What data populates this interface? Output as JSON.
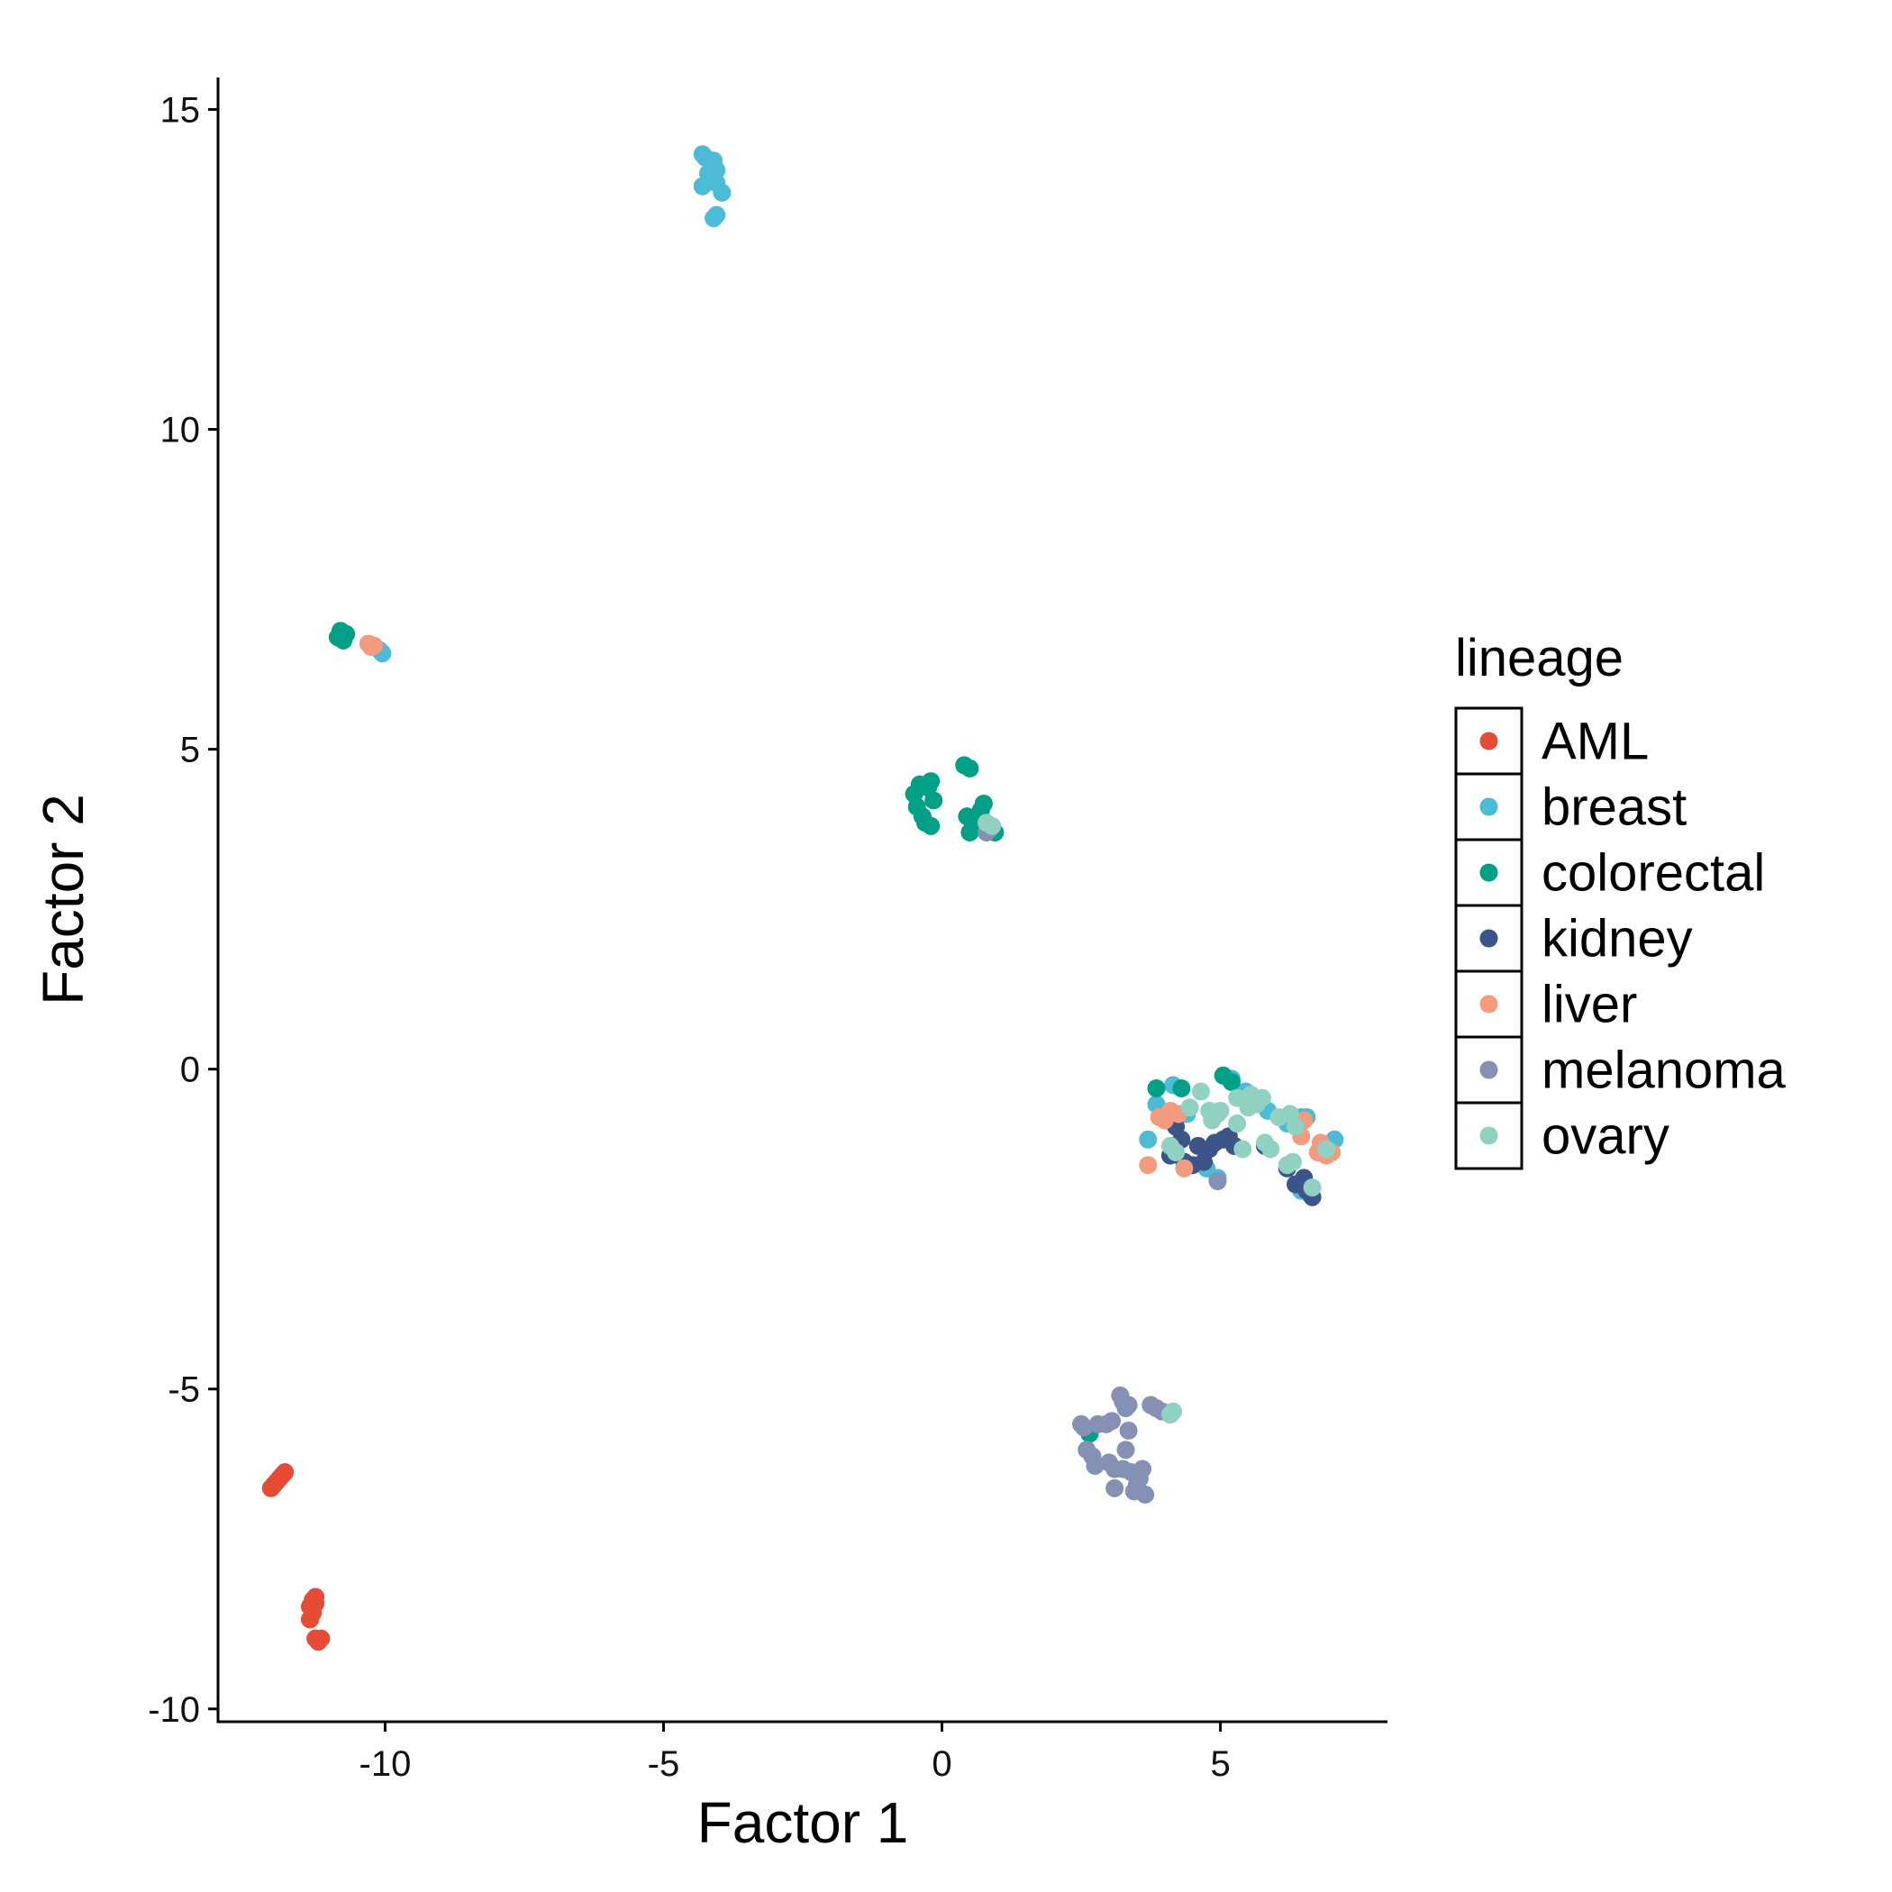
{
  "chart_data": {
    "type": "scatter",
    "title": "",
    "xlabel": "Factor 1",
    "ylabel": "Factor 2",
    "xlim": [
      -13,
      8
    ],
    "ylim": [
      -10.2,
      15.5
    ],
    "x_ticks": [
      -10,
      -5,
      0,
      5
    ],
    "x_tick_labels": [
      "-10",
      "-5",
      "0",
      "5"
    ],
    "y_ticks": [
      -10,
      -5,
      0,
      5,
      10,
      15
    ],
    "y_tick_labels": [
      "-10",
      "-5",
      "0",
      "5",
      "10",
      "15"
    ],
    "grid": false,
    "legend": {
      "title": "lineage",
      "position": "right"
    },
    "series": [
      {
        "name": "AML",
        "color": "#E64B35",
        "points": [
          [
            -12.0,
            -6.5
          ],
          [
            -11.95,
            -6.45
          ],
          [
            -11.9,
            -6.4
          ],
          [
            -11.85,
            -6.35
          ],
          [
            -11.8,
            -6.3
          ],
          [
            -12.05,
            -6.55
          ],
          [
            -11.3,
            -8.3
          ],
          [
            -11.25,
            -8.25
          ],
          [
            -11.35,
            -8.4
          ],
          [
            -11.3,
            -8.5
          ],
          [
            -11.35,
            -8.6
          ],
          [
            -11.25,
            -8.35
          ],
          [
            -11.25,
            -8.9
          ],
          [
            -11.2,
            -8.95
          ],
          [
            -11.15,
            -8.9
          ]
        ]
      },
      {
        "name": "breast",
        "color": "#4DBBD5",
        "points": [
          [
            -4.3,
            14.3
          ],
          [
            -4.25,
            14.25
          ],
          [
            -4.1,
            14.2
          ],
          [
            -4.05,
            14.05
          ],
          [
            -4.2,
            14.0
          ],
          [
            -4.15,
            13.9
          ],
          [
            -4.3,
            13.8
          ],
          [
            -4.05,
            13.85
          ],
          [
            -3.95,
            13.7
          ],
          [
            -4.1,
            13.3
          ],
          [
            -4.05,
            13.35
          ],
          [
            -10.1,
            6.55
          ],
          [
            -10.05,
            6.5
          ],
          [
            3.7,
            -1.1
          ],
          [
            3.85,
            -0.55
          ],
          [
            4.15,
            -0.25
          ],
          [
            4.4,
            -0.7
          ],
          [
            4.75,
            -1.55
          ],
          [
            4.95,
            -1.7
          ],
          [
            5.2,
            -0.15
          ],
          [
            5.45,
            -0.35
          ],
          [
            5.85,
            -0.65
          ],
          [
            6.2,
            -0.85
          ],
          [
            6.45,
            -0.75
          ],
          [
            6.55,
            -0.75
          ],
          [
            6.45,
            -1.9
          ],
          [
            6.6,
            -1.95
          ],
          [
            7.05,
            -1.1
          ],
          [
            6.85,
            -1.2
          ]
        ]
      },
      {
        "name": "colorectal",
        "color": "#00A087",
        "points": [
          [
            -10.85,
            6.75
          ],
          [
            -10.8,
            6.85
          ],
          [
            -10.7,
            6.8
          ],
          [
            -10.75,
            6.7
          ],
          [
            -0.5,
            4.3
          ],
          [
            -0.45,
            4.1
          ],
          [
            -0.4,
            4.45
          ],
          [
            -0.35,
            3.95
          ],
          [
            -0.3,
            3.85
          ],
          [
            -0.2,
            3.8
          ],
          [
            -0.25,
            4.4
          ],
          [
            -0.2,
            4.5
          ],
          [
            -0.15,
            4.2
          ],
          [
            0.4,
            4.75
          ],
          [
            0.5,
            4.7
          ],
          [
            0.45,
            3.95
          ],
          [
            0.55,
            3.85
          ],
          [
            0.5,
            3.7
          ],
          [
            0.7,
            4.05
          ],
          [
            0.75,
            4.15
          ],
          [
            0.95,
            3.7
          ],
          [
            3.85,
            -0.3
          ],
          [
            4.3,
            -0.3
          ],
          [
            5.05,
            -0.1
          ],
          [
            5.2,
            -0.2
          ],
          [
            2.65,
            -5.7
          ]
        ]
      },
      {
        "name": "kidney",
        "color": "#3C5488",
        "points": [
          [
            4.2,
            -0.9
          ],
          [
            4.3,
            -1.1
          ],
          [
            4.1,
            -1.35
          ],
          [
            4.35,
            -1.45
          ],
          [
            4.5,
            -1.5
          ],
          [
            4.6,
            -1.2
          ],
          [
            4.8,
            -1.25
          ],
          [
            4.9,
            -1.15
          ],
          [
            5.05,
            -1.1
          ],
          [
            5.15,
            -1.05
          ],
          [
            5.25,
            -1.2
          ],
          [
            4.7,
            -1.45
          ],
          [
            5.8,
            -1.2
          ],
          [
            6.2,
            -1.55
          ],
          [
            6.35,
            -1.8
          ],
          [
            6.5,
            -1.7
          ],
          [
            6.65,
            -2.0
          ],
          [
            6.55,
            -1.9
          ]
        ]
      },
      {
        "name": "liver",
        "color": "#F39B7F",
        "points": [
          [
            -10.3,
            6.65
          ],
          [
            -10.25,
            6.6
          ],
          [
            -10.2,
            6.62
          ],
          [
            3.7,
            -1.5
          ],
          [
            3.9,
            -0.75
          ],
          [
            4.0,
            -0.8
          ],
          [
            4.1,
            -0.65
          ],
          [
            4.25,
            -0.7
          ],
          [
            4.35,
            -1.55
          ],
          [
            6.45,
            -1.05
          ],
          [
            6.5,
            -0.8
          ],
          [
            6.75,
            -1.3
          ],
          [
            6.85,
            -1.25
          ],
          [
            6.9,
            -1.35
          ],
          [
            7.0,
            -1.3
          ],
          [
            6.8,
            -1.15
          ]
        ]
      },
      {
        "name": "melanoma",
        "color": "#8491B4",
        "points": [
          [
            0.8,
            3.7
          ],
          [
            0.85,
            3.75
          ],
          [
            4.95,
            -1.75
          ],
          [
            2.5,
            -5.55
          ],
          [
            2.55,
            -5.6
          ],
          [
            2.6,
            -5.95
          ],
          [
            2.7,
            -6.05
          ],
          [
            2.75,
            -6.2
          ],
          [
            2.8,
            -5.55
          ],
          [
            2.95,
            -5.55
          ],
          [
            3.05,
            -5.5
          ],
          [
            3.0,
            -6.15
          ],
          [
            3.1,
            -6.25
          ],
          [
            3.1,
            -6.55
          ],
          [
            3.2,
            -5.1
          ],
          [
            3.25,
            -5.2
          ],
          [
            3.3,
            -5.3
          ],
          [
            3.25,
            -6.25
          ],
          [
            3.3,
            -5.95
          ],
          [
            3.35,
            -5.65
          ],
          [
            3.4,
            -6.3
          ],
          [
            3.45,
            -6.6
          ],
          [
            3.5,
            -6.5
          ],
          [
            3.55,
            -6.4
          ],
          [
            3.6,
            -6.25
          ],
          [
            3.65,
            -6.65
          ],
          [
            3.35,
            -5.25
          ],
          [
            3.75,
            -5.25
          ],
          [
            3.85,
            -5.3
          ],
          [
            3.95,
            -5.35
          ]
        ]
      },
      {
        "name": "ovary",
        "color": "#91D1C2",
        "points": [
          [
            0.8,
            3.85
          ],
          [
            0.9,
            3.8
          ],
          [
            4.1,
            -1.2
          ],
          [
            4.2,
            -1.3
          ],
          [
            4.45,
            -0.6
          ],
          [
            4.65,
            -0.35
          ],
          [
            4.8,
            -0.65
          ],
          [
            4.85,
            -0.8
          ],
          [
            4.95,
            -0.7
          ],
          [
            5.0,
            -0.65
          ],
          [
            5.3,
            -0.45
          ],
          [
            5.3,
            -0.85
          ],
          [
            5.4,
            -1.25
          ],
          [
            5.5,
            -0.6
          ],
          [
            5.55,
            -0.4
          ],
          [
            5.65,
            -0.55
          ],
          [
            5.75,
            -0.45
          ],
          [
            5.8,
            -1.15
          ],
          [
            5.9,
            -1.25
          ],
          [
            6.05,
            -0.75
          ],
          [
            6.25,
            -0.7
          ],
          [
            6.35,
            -0.9
          ],
          [
            6.2,
            -1.5
          ],
          [
            6.3,
            -1.45
          ],
          [
            6.65,
            -1.85
          ],
          [
            6.9,
            -1.25
          ],
          [
            4.1,
            -5.4
          ],
          [
            4.15,
            -5.35
          ]
        ]
      }
    ]
  }
}
